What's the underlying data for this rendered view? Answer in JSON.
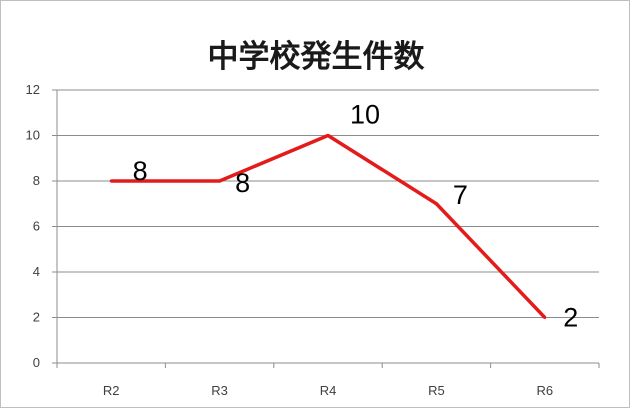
{
  "chart_data": {
    "type": "line",
    "title": "中学校発生件数",
    "categories": [
      "R2",
      "R3",
      "R4",
      "R5",
      "R6"
    ],
    "series": [
      {
        "values": [
          8,
          8,
          10,
          7,
          2
        ],
        "color": "#e41b1b"
      }
    ],
    "data_labels": [
      "8",
      "8",
      "10",
      "7",
      "2"
    ],
    "ylim": [
      0,
      12
    ],
    "y_ticks": [
      "0",
      "2",
      "4",
      "6",
      "8",
      "10",
      "12"
    ],
    "grid": true,
    "legend": "none"
  }
}
